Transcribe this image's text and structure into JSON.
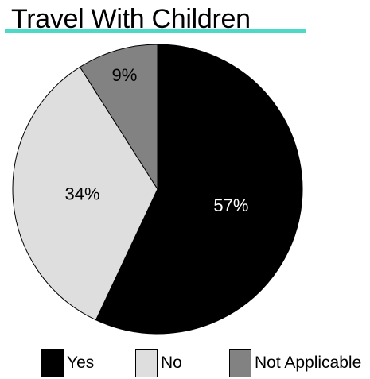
{
  "chart_data": {
    "type": "pie",
    "title": "Travel With Children",
    "slices": [
      {
        "label": "Yes",
        "value": 57,
        "display": "57%",
        "color": "#000000",
        "text_color": "#ffffff"
      },
      {
        "label": "No",
        "value": 34,
        "display": "34%",
        "color": "#dedede",
        "text_color": "#000000"
      },
      {
        "label": "Not Applicable",
        "value": 9,
        "display": "9%",
        "color": "#828282",
        "text_color": "#000000"
      }
    ],
    "legend_position": "bottom"
  },
  "colors": {
    "title_underline": "#4dd9c8"
  }
}
